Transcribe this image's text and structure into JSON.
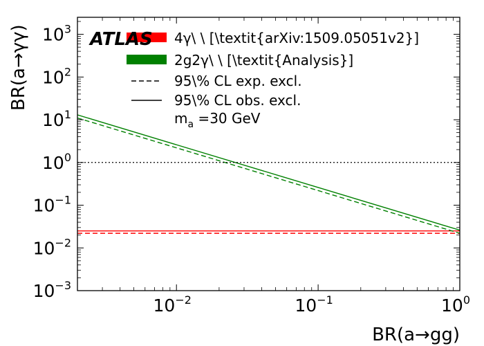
{
  "chart_data": {
    "type": "line",
    "title": "",
    "xlabel": "BR(a→gg)",
    "ylabel": "BR(a→γγ)",
    "xscale": "log",
    "yscale": "log",
    "xlim": [
      0.002,
      1.0
    ],
    "ylim": [
      0.001,
      2500
    ],
    "grid": false,
    "x_ticks": [
      {
        "base": "10",
        "exp": "−2",
        "value": 0.01
      },
      {
        "base": "10",
        "exp": "−1",
        "value": 0.1
      },
      {
        "base": "10",
        "exp": "0",
        "value": 1
      }
    ],
    "y_ticks": [
      {
        "base": "10",
        "exp": "−3",
        "value": 0.001
      },
      {
        "base": "10",
        "exp": "−2",
        "value": 0.01
      },
      {
        "base": "10",
        "exp": "−1",
        "value": 0.1
      },
      {
        "base": "10",
        "exp": "0",
        "value": 1
      },
      {
        "base": "10",
        "exp": "1",
        "value": 10
      },
      {
        "base": "10",
        "exp": "2",
        "value": 100
      },
      {
        "base": "10",
        "exp": "3",
        "value": 1000
      }
    ],
    "series": [
      {
        "name": "4γ\\ \\ [\\textit{arXiv:1509.05051v2}]",
        "color": "#ff0000",
        "style": "dashed",
        "kind": "expected",
        "x": [
          0.002,
          1.0
        ],
        "y": [
          0.022,
          0.022
        ]
      },
      {
        "name": "4γ\\ \\ [\\textit{arXiv:1509.05051v2}]",
        "color": "#ff0000",
        "style": "solid",
        "kind": "observed",
        "x": [
          0.002,
          1.0
        ],
        "y": [
          0.025,
          0.025
        ]
      },
      {
        "name": "2g2γ\\ \\ [\\textit{Analysis}]",
        "color": "#008000",
        "style": "dashed",
        "kind": "expected",
        "x": [
          0.002,
          1.0
        ],
        "y": [
          11,
          0.022
        ]
      },
      {
        "name": "2g2γ\\ \\ [\\textit{Analysis}]",
        "color": "#008000",
        "style": "solid",
        "kind": "observed",
        "x": [
          0.002,
          1.0
        ],
        "y": [
          13,
          0.026
        ]
      },
      {
        "name": "",
        "color": "#000000",
        "style": "dotted",
        "kind": "reference",
        "x": [
          0.002,
          1.0
        ],
        "y": [
          1,
          1
        ]
      }
    ],
    "legend": {
      "placement": "top-left",
      "atlas_label": "ATLAS",
      "entries": [
        {
          "label": "4γ\\ \\ [\\textit{arXiv:1509.05051v2}]",
          "color": "#ff0000",
          "swatch": "band"
        },
        {
          "label": "2g2γ\\ \\ [\\textit{Analysis}]",
          "color": "#008000",
          "swatch": "band"
        },
        {
          "label": "95\\% CL exp. excl.",
          "color": "#000000",
          "swatch": "dashed"
        },
        {
          "label": "95\\% CL obs. excl.",
          "color": "#000000",
          "swatch": "solid"
        }
      ],
      "mass_label": {
        "text": "m",
        "sub": "a",
        "rest": " =30 GeV"
      }
    }
  }
}
